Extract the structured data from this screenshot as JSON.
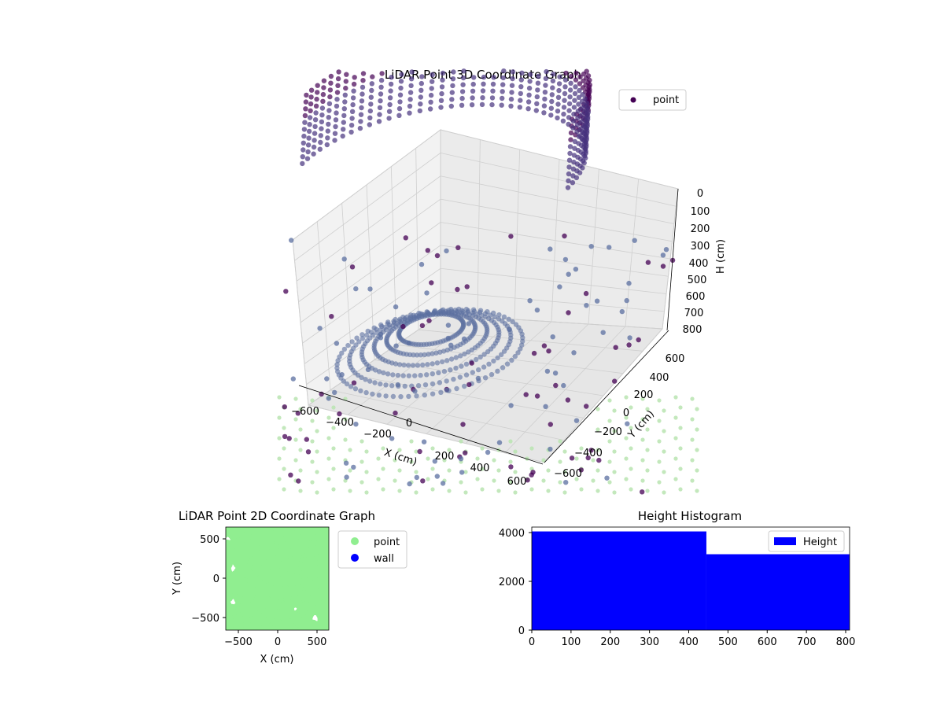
{
  "chart_data": [
    {
      "type": "scatter",
      "title": "LiDAR Point 3D Coordinate Graph",
      "xlabel": "X (cm)",
      "ylabel": "Y (cm)",
      "zlabel": "H (cm)",
      "xlim": [
        -650,
        650
      ],
      "ylim": [
        -650,
        650
      ],
      "zlim": [
        800,
        0
      ],
      "xticks": [
        "−600",
        "−400",
        "−200",
        "0",
        "200",
        "400",
        "600"
      ],
      "yticks": [
        "−600",
        "−400",
        "−200",
        "0",
        "200",
        "400",
        "600"
      ],
      "zticks": [
        "0",
        "100",
        "200",
        "300",
        "400",
        "500",
        "600",
        "700",
        "800"
      ],
      "legend": {
        "position": "top-right",
        "entries": [
          "point"
        ]
      },
      "grid": true,
      "colors": {
        "point_dark": "#440154",
        "point_mid": "#46327e",
        "point_light": "#5b6fa0",
        "floor": "#b8e4b0"
      },
      "series": [
        {
          "name": "point",
          "description_values": {
            "upper_ring": {
              "radius_cm": 560,
              "h_range": [
                80,
                380
              ],
              "angle_range_deg": [
                20,
                200
              ]
            },
            "lower_ring": {
              "radius_cm": 350,
              "h_range": [
                620,
                780
              ]
            },
            "scattered": {
              "h_range": [
                300,
                800
              ]
            }
          }
        }
      ]
    },
    {
      "type": "scatter",
      "title": "LiDAR Point 2D Coordinate Graph",
      "xlabel": "X (cm)",
      "ylabel": "Y (cm)",
      "xlim": [
        -650,
        650
      ],
      "ylim": [
        -650,
        650
      ],
      "xticks": [
        "−500",
        "0",
        "500"
      ],
      "yticks": [
        "−500",
        "0",
        "500"
      ],
      "legend": {
        "position": "outside-right",
        "entries": [
          "point",
          "wall"
        ]
      },
      "colors": {
        "point": "#90ee90",
        "wall": "#0000ff"
      },
      "series": [
        {
          "name": "point",
          "coverage": "dense fill of region x∈[-650,650], y∈[-650,650] with gaps near (-560,130), (-560,-300), (230,-380), (480,-500)"
        },
        {
          "name": "wall",
          "values": []
        }
      ]
    },
    {
      "type": "bar",
      "title": "Height Histogram",
      "xlim": [
        0,
        810
      ],
      "ylim": [
        0,
        4250
      ],
      "xticks": [
        "0",
        "100",
        "200",
        "300",
        "400",
        "500",
        "600",
        "700",
        "800"
      ],
      "yticks": [
        "0",
        "2000",
        "4000"
      ],
      "legend": {
        "position": "top-right",
        "entries": [
          "Height"
        ]
      },
      "colors": {
        "bar": "#0000ff"
      },
      "series": [
        {
          "name": "Height",
          "bins": [
            [
              0,
              445
            ],
            [
              445,
              810
            ]
          ],
          "values": [
            4070,
            3130
          ]
        }
      ]
    }
  ]
}
